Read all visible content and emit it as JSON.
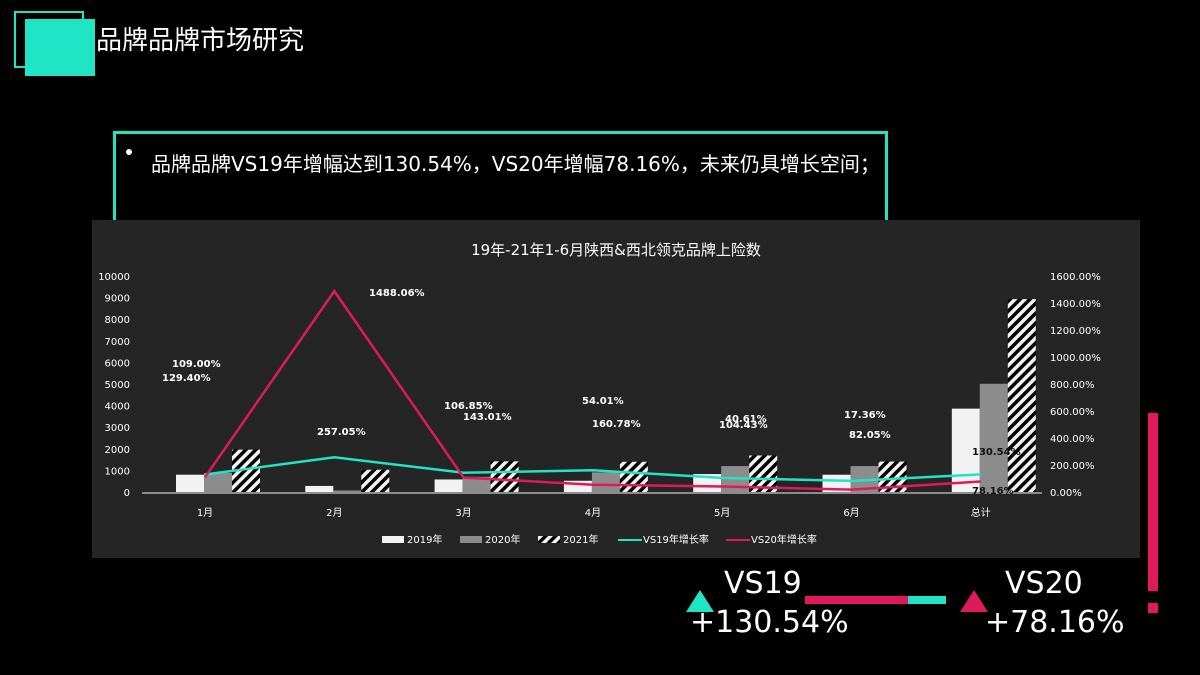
{
  "header": {
    "title": "品牌品牌市场研究",
    "accent_color": "#1fe5c4"
  },
  "summary": {
    "bullet": "品牌品牌VS19年增幅达到130.54%，VS20年增幅78.16%，未来仍具增长空间；"
  },
  "kpis": [
    {
      "label": "VS19",
      "value": "+130.54%",
      "trend": "up",
      "color": "#1fe5c4"
    },
    {
      "label": "VS20",
      "value": "+78.16%",
      "trend": "up",
      "color": "#e0195f"
    }
  ],
  "colors": {
    "teal": "#1fe5c4",
    "pink": "#e0195f",
    "panel": "#252525",
    "bar2019": "#f2f2f2",
    "bar2020": "#8c8c8c"
  },
  "chart_data": {
    "type": "bar",
    "title": "19年-21年1-6月陕西&西北领克品牌上险数",
    "categories": [
      "1月",
      "2月",
      "3月",
      "4月",
      "5月",
      "6月",
      "总计"
    ],
    "series": [
      {
        "name": "2019年",
        "type": "bar",
        "axis": "left",
        "values": [
          800,
          280,
          580,
          520,
          830,
          800,
          3860
        ]
      },
      {
        "name": "2020年",
        "type": "bar",
        "axis": "left",
        "values": [
          880,
          70,
          700,
          910,
          1200,
          1200,
          5010
        ]
      },
      {
        "name": "2021年",
        "type": "bar",
        "axis": "left",
        "pattern": "diagonal-stripes",
        "values": [
          1960,
          1030,
          1420,
          1400,
          1690,
          1410,
          8930
        ]
      },
      {
        "name": "VS19年增长率",
        "type": "line",
        "axis": "right",
        "color": "#1fe5c4",
        "values": [
          129.4,
          257.05,
          143.01,
          160.78,
          104.43,
          82.05,
          130.54
        ]
      },
      {
        "name": "VS20年增长率",
        "type": "line",
        "axis": "right",
        "color": "#e0195f",
        "values": [
          109.0,
          1488.06,
          106.85,
          54.01,
          40.61,
          17.36,
          78.16
        ]
      }
    ],
    "data_labels": {
      "VS19年增长率": [
        "129.40%",
        "257.05%",
        "143.01%",
        "160.78%",
        "104.43%",
        "82.05%",
        "130.54%"
      ],
      "VS20年增长率": [
        "109.00%",
        "1488.06%",
        "106.85%",
        "54.01%",
        "40.61%",
        "17.36%",
        "78.16%"
      ]
    },
    "y_left": {
      "ticks": [
        "0",
        "1000",
        "2000",
        "3000",
        "4000",
        "5000",
        "6000",
        "7000",
        "8000",
        "9000",
        "10000"
      ],
      "ylim": [
        0,
        10000
      ]
    },
    "y_right": {
      "ticks": [
        "0.00%",
        "200.00%",
        "400.00%",
        "600.00%",
        "800.00%",
        "1000.00%",
        "1200.00%",
        "1400.00%",
        "1600.00%"
      ],
      "ylim": [
        0,
        1600
      ]
    },
    "xlabel": "",
    "ylabel": "",
    "grid": false,
    "legend": {
      "position": "bottom",
      "entries": [
        "2019年",
        "2020年",
        "2021年",
        "VS19年增长率",
        "VS20年增长率"
      ]
    }
  }
}
